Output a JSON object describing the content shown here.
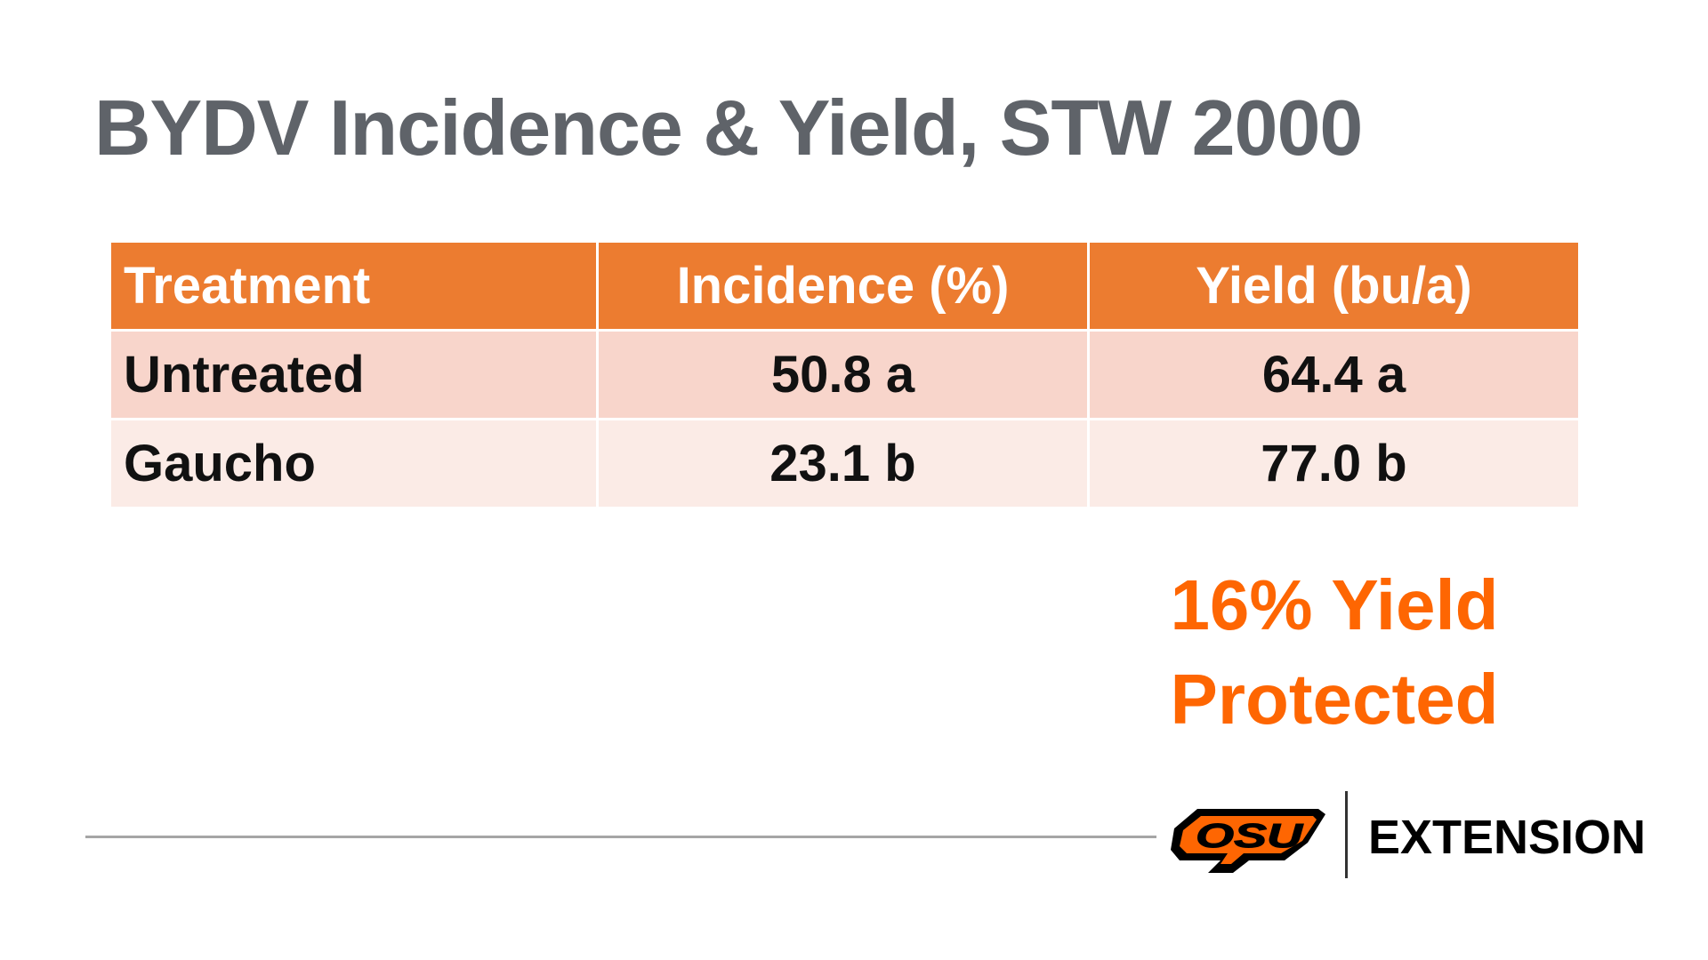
{
  "slide": {
    "title": "BYDV Incidence & Yield, STW 2000"
  },
  "table": {
    "headers": [
      "Treatment",
      "Incidence (%)",
      "Yield (bu/a)"
    ],
    "rows": [
      [
        "Untreated",
        "50.8 a",
        "64.4 a"
      ],
      [
        "Gaucho",
        "23.1 b",
        "77.0 b"
      ]
    ]
  },
  "callout": {
    "line1": "16% Yield",
    "line2": "Protected"
  },
  "footer": {
    "logo_text": "OSU",
    "brand": "EXTENSION"
  },
  "colors": {
    "header_orange": "#ec7c30",
    "callout_orange": "#fe6602",
    "title_gray": "#5f6369"
  }
}
